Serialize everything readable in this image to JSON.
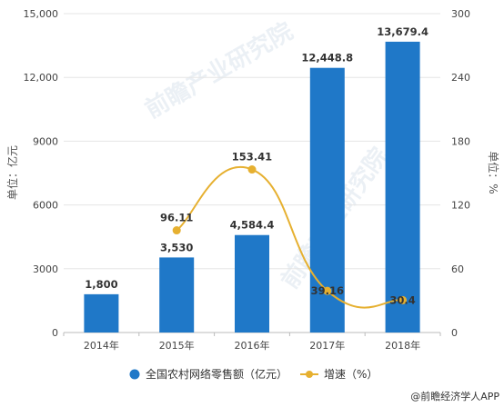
{
  "chart_data": {
    "type": "bar",
    "categories": [
      "2014年",
      "2015年",
      "2016年",
      "2017年",
      "2018年"
    ],
    "series": [
      {
        "name": "全国农村网络零售额（亿元）",
        "kind": "bar",
        "axis": "left",
        "color": "#1f78c8",
        "values": [
          1800,
          3530,
          4584.4,
          12448.8,
          13679.4
        ],
        "labels": [
          "1,800",
          "3,530",
          "4,584.4",
          "12,448.8",
          "13,679.4"
        ]
      },
      {
        "name": "增速（%）",
        "kind": "line",
        "axis": "right",
        "color": "#e6b030",
        "values": [
          null,
          96.11,
          153.41,
          39.16,
          30.4
        ],
        "labels": [
          "",
          "96.11",
          "153.41",
          "39.16",
          "30.4"
        ]
      }
    ],
    "ylabel": "单位：亿元",
    "y2label": "单位：%",
    "ylim": [
      0,
      15000
    ],
    "y2lim": [
      0,
      300
    ],
    "yticks": [
      "0",
      "3000",
      "6000",
      "9000",
      "12,000",
      "15,000"
    ],
    "y2ticks": [
      "0",
      "60",
      "120",
      "180",
      "240",
      "300"
    ],
    "grid": true,
    "legend": "bottom"
  },
  "watermark": {
    "text": "前瞻产业研究院"
  },
  "credit": {
    "text": "@前瞻经济学人APP"
  },
  "colors": {
    "grid": "#e5e5e5",
    "axis": "#bbbbbb"
  }
}
